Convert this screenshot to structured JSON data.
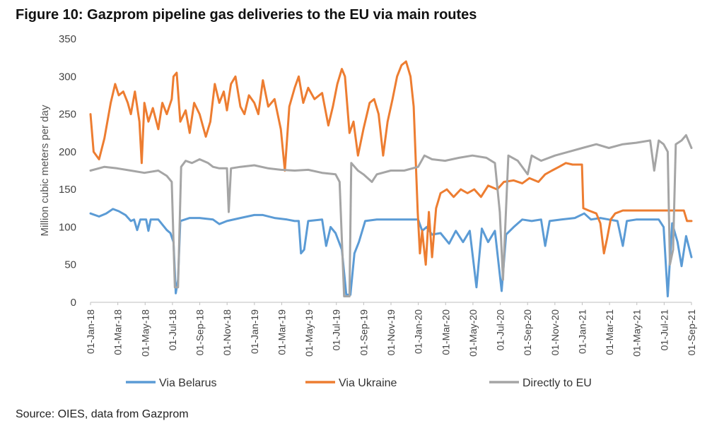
{
  "figure": {
    "title": "Figure 10: Gazprom pipeline gas deliveries to the EU via main routes",
    "source": "Source: OIES, data from Gazprom"
  },
  "chart_data": {
    "type": "line",
    "title": "Figure 10: Gazprom pipeline gas deliveries to the EU via main routes",
    "xlabel": "",
    "ylabel": "Million cubic meters per day",
    "ylim": [
      0,
      350
    ],
    "yticks": [
      0,
      50,
      100,
      150,
      200,
      250,
      300,
      350
    ],
    "xlim": [
      "2018-01-01",
      "2021-09-01"
    ],
    "xtick_labels": [
      "01-Jan-18",
      "01-Mar-18",
      "01-May-18",
      "01-Jul-18",
      "01-Sep-18",
      "01-Nov-18",
      "01-Jan-19",
      "01-Mar-19",
      "01-May-19",
      "01-Jul-19",
      "01-Sep-19",
      "01-Nov-19",
      "01-Jan-20",
      "01-Mar-20",
      "01-May-20",
      "01-Jul-20",
      "01-Sep-20",
      "01-Nov-20",
      "01-Jan-21",
      "01-Mar-21",
      "01-May-21",
      "01-Jul-21",
      "01-Sep-21"
    ],
    "grid": false,
    "legend_position": "bottom",
    "series": [
      {
        "name": "Via Belarus",
        "color": "#5b9bd5",
        "points": [
          [
            "2018-01-01",
            118
          ],
          [
            "2018-01-20",
            114
          ],
          [
            "2018-02-05",
            118
          ],
          [
            "2018-02-20",
            124
          ],
          [
            "2018-03-05",
            121
          ],
          [
            "2018-03-20",
            116
          ],
          [
            "2018-04-01",
            108
          ],
          [
            "2018-04-08",
            110
          ],
          [
            "2018-04-15",
            96
          ],
          [
            "2018-04-22",
            110
          ],
          [
            "2018-05-05",
            110
          ],
          [
            "2018-05-10",
            95
          ],
          [
            "2018-05-15",
            110
          ],
          [
            "2018-06-01",
            110
          ],
          [
            "2018-06-20",
            96
          ],
          [
            "2018-06-28",
            92
          ],
          [
            "2018-07-05",
            80
          ],
          [
            "2018-07-10",
            12
          ],
          [
            "2018-07-15",
            30
          ],
          [
            "2018-07-20",
            108
          ],
          [
            "2018-08-10",
            112
          ],
          [
            "2018-09-01",
            112
          ],
          [
            "2018-10-01",
            110
          ],
          [
            "2018-10-15",
            104
          ],
          [
            "2018-11-01",
            108
          ],
          [
            "2018-12-01",
            112
          ],
          [
            "2019-01-01",
            116
          ],
          [
            "2019-01-20",
            116
          ],
          [
            "2019-02-15",
            112
          ],
          [
            "2019-03-15",
            110
          ],
          [
            "2019-04-01",
            108
          ],
          [
            "2019-04-10",
            108
          ],
          [
            "2019-04-15",
            65
          ],
          [
            "2019-04-22",
            70
          ],
          [
            "2019-05-01",
            108
          ],
          [
            "2019-06-01",
            110
          ],
          [
            "2019-06-10",
            75
          ],
          [
            "2019-06-20",
            100
          ],
          [
            "2019-07-01",
            92
          ],
          [
            "2019-07-15",
            70
          ],
          [
            "2019-07-25",
            10
          ],
          [
            "2019-08-03",
            10
          ],
          [
            "2019-08-12",
            65
          ],
          [
            "2019-08-22",
            80
          ],
          [
            "2019-09-05",
            108
          ],
          [
            "2019-10-01",
            110
          ],
          [
            "2019-11-01",
            110
          ],
          [
            "2019-12-01",
            110
          ],
          [
            "2020-01-01",
            110
          ],
          [
            "2020-01-10",
            95
          ],
          [
            "2020-01-20",
            100
          ],
          [
            "2020-02-01",
            90
          ],
          [
            "2020-02-20",
            92
          ],
          [
            "2020-03-10",
            78
          ],
          [
            "2020-03-25",
            95
          ],
          [
            "2020-04-10",
            80
          ],
          [
            "2020-04-25",
            95
          ],
          [
            "2020-05-10",
            20
          ],
          [
            "2020-05-22",
            98
          ],
          [
            "2020-06-05",
            80
          ],
          [
            "2020-06-20",
            95
          ],
          [
            "2020-07-05",
            15
          ],
          [
            "2020-07-15",
            90
          ],
          [
            "2020-08-01",
            100
          ],
          [
            "2020-08-20",
            110
          ],
          [
            "2020-09-10",
            108
          ],
          [
            "2020-10-01",
            110
          ],
          [
            "2020-10-10",
            75
          ],
          [
            "2020-10-20",
            108
          ],
          [
            "2020-11-15",
            110
          ],
          [
            "2020-12-15",
            112
          ],
          [
            "2021-01-05",
            118
          ],
          [
            "2021-01-20",
            110
          ],
          [
            "2021-02-10",
            112
          ],
          [
            "2021-03-01",
            110
          ],
          [
            "2021-03-20",
            108
          ],
          [
            "2021-04-01",
            75
          ],
          [
            "2021-04-10",
            108
          ],
          [
            "2021-05-01",
            110
          ],
          [
            "2021-05-20",
            110
          ],
          [
            "2021-06-20",
            110
          ],
          [
            "2021-07-01",
            100
          ],
          [
            "2021-07-10",
            8
          ],
          [
            "2021-07-20",
            105
          ],
          [
            "2021-08-01",
            80
          ],
          [
            "2021-08-10",
            48
          ],
          [
            "2021-08-20",
            88
          ],
          [
            "2021-09-01",
            60
          ]
        ]
      },
      {
        "name": "Via Ukraine",
        "color": "#ed7d31",
        "points": [
          [
            "2018-01-01",
            250
          ],
          [
            "2018-01-08",
            200
          ],
          [
            "2018-01-20",
            190
          ],
          [
            "2018-02-01",
            218
          ],
          [
            "2018-02-15",
            265
          ],
          [
            "2018-02-25",
            290
          ],
          [
            "2018-03-05",
            275
          ],
          [
            "2018-03-15",
            280
          ],
          [
            "2018-03-25",
            265
          ],
          [
            "2018-04-01",
            250
          ],
          [
            "2018-04-10",
            280
          ],
          [
            "2018-04-20",
            240
          ],
          [
            "2018-04-25",
            185
          ],
          [
            "2018-05-01",
            265
          ],
          [
            "2018-05-10",
            240
          ],
          [
            "2018-05-20",
            258
          ],
          [
            "2018-06-01",
            230
          ],
          [
            "2018-06-10",
            265
          ],
          [
            "2018-06-20",
            250
          ],
          [
            "2018-07-01",
            270
          ],
          [
            "2018-07-05",
            300
          ],
          [
            "2018-07-12",
            305
          ],
          [
            "2018-07-20",
            240
          ],
          [
            "2018-08-01",
            255
          ],
          [
            "2018-08-10",
            225
          ],
          [
            "2018-08-20",
            265
          ],
          [
            "2018-09-01",
            250
          ],
          [
            "2018-09-15",
            220
          ],
          [
            "2018-09-25",
            240
          ],
          [
            "2018-10-05",
            290
          ],
          [
            "2018-10-15",
            265
          ],
          [
            "2018-10-25",
            280
          ],
          [
            "2018-11-01",
            255
          ],
          [
            "2018-11-10",
            290
          ],
          [
            "2018-11-20",
            300
          ],
          [
            "2018-12-01",
            260
          ],
          [
            "2018-12-10",
            250
          ],
          [
            "2018-12-20",
            275
          ],
          [
            "2019-01-01",
            265
          ],
          [
            "2019-01-10",
            250
          ],
          [
            "2019-01-20",
            295
          ],
          [
            "2019-02-01",
            260
          ],
          [
            "2019-02-15",
            270
          ],
          [
            "2019-03-01",
            230
          ],
          [
            "2019-03-10",
            175
          ],
          [
            "2019-03-20",
            260
          ],
          [
            "2019-04-01",
            285
          ],
          [
            "2019-04-10",
            300
          ],
          [
            "2019-04-20",
            265
          ],
          [
            "2019-05-01",
            285
          ],
          [
            "2019-05-15",
            270
          ],
          [
            "2019-06-01",
            278
          ],
          [
            "2019-06-15",
            235
          ],
          [
            "2019-06-25",
            260
          ],
          [
            "2019-07-05",
            290
          ],
          [
            "2019-07-15",
            310
          ],
          [
            "2019-07-22",
            300
          ],
          [
            "2019-08-01",
            225
          ],
          [
            "2019-08-10",
            240
          ],
          [
            "2019-08-20",
            195
          ],
          [
            "2019-09-01",
            230
          ],
          [
            "2019-09-15",
            265
          ],
          [
            "2019-09-25",
            270
          ],
          [
            "2019-10-05",
            250
          ],
          [
            "2019-10-15",
            195
          ],
          [
            "2019-10-25",
            240
          ],
          [
            "2019-11-05",
            270
          ],
          [
            "2019-11-15",
            300
          ],
          [
            "2019-11-25",
            315
          ],
          [
            "2019-12-05",
            320
          ],
          [
            "2019-12-15",
            300
          ],
          [
            "2019-12-22",
            260
          ],
          [
            "2019-12-31",
            120
          ],
          [
            "2020-01-05",
            65
          ],
          [
            "2020-01-10",
            95
          ],
          [
            "2020-01-18",
            50
          ],
          [
            "2020-01-25",
            120
          ],
          [
            "2020-02-01",
            60
          ],
          [
            "2020-02-10",
            125
          ],
          [
            "2020-02-20",
            145
          ],
          [
            "2020-03-05",
            150
          ],
          [
            "2020-03-20",
            140
          ],
          [
            "2020-04-05",
            150
          ],
          [
            "2020-04-20",
            145
          ],
          [
            "2020-05-05",
            150
          ],
          [
            "2020-05-20",
            140
          ],
          [
            "2020-06-05",
            155
          ],
          [
            "2020-06-25",
            150
          ],
          [
            "2020-07-10",
            160
          ],
          [
            "2020-08-01",
            162
          ],
          [
            "2020-08-20",
            158
          ],
          [
            "2020-09-05",
            165
          ],
          [
            "2020-09-25",
            160
          ],
          [
            "2020-10-10",
            170
          ],
          [
            "2020-10-25",
            175
          ],
          [
            "2020-11-10",
            180
          ],
          [
            "2020-11-25",
            185
          ],
          [
            "2020-12-10",
            183
          ],
          [
            "2020-12-31",
            183
          ],
          [
            "2021-01-03",
            125
          ],
          [
            "2021-01-15",
            122
          ],
          [
            "2021-02-01",
            118
          ],
          [
            "2021-02-10",
            105
          ],
          [
            "2021-02-18",
            65
          ],
          [
            "2021-02-25",
            85
          ],
          [
            "2021-03-05",
            110
          ],
          [
            "2021-03-15",
            118
          ],
          [
            "2021-04-01",
            122
          ],
          [
            "2021-05-01",
            122
          ],
          [
            "2021-06-01",
            122
          ],
          [
            "2021-07-01",
            122
          ],
          [
            "2021-08-01",
            122
          ],
          [
            "2021-08-15",
            122
          ],
          [
            "2021-08-22",
            108
          ],
          [
            "2021-09-01",
            108
          ]
        ]
      },
      {
        "name": "Directly to EU",
        "color": "#a5a5a5",
        "points": [
          [
            "2018-01-01",
            175
          ],
          [
            "2018-02-01",
            180
          ],
          [
            "2018-03-01",
            178
          ],
          [
            "2018-04-01",
            175
          ],
          [
            "2018-05-01",
            172
          ],
          [
            "2018-06-01",
            175
          ],
          [
            "2018-06-20",
            168
          ],
          [
            "2018-07-01",
            160
          ],
          [
            "2018-07-08",
            20
          ],
          [
            "2018-07-15",
            20
          ],
          [
            "2018-07-22",
            180
          ],
          [
            "2018-08-01",
            188
          ],
          [
            "2018-08-15",
            185
          ],
          [
            "2018-09-01",
            190
          ],
          [
            "2018-09-20",
            185
          ],
          [
            "2018-10-01",
            180
          ],
          [
            "2018-10-15",
            178
          ],
          [
            "2018-11-01",
            178
          ],
          [
            "2018-11-05",
            120
          ],
          [
            "2018-11-10",
            178
          ],
          [
            "2018-12-01",
            180
          ],
          [
            "2019-01-01",
            182
          ],
          [
            "2019-02-01",
            178
          ],
          [
            "2019-03-01",
            176
          ],
          [
            "2019-04-01",
            175
          ],
          [
            "2019-05-01",
            176
          ],
          [
            "2019-06-01",
            172
          ],
          [
            "2019-07-01",
            170
          ],
          [
            "2019-07-10",
            160
          ],
          [
            "2019-07-20",
            8
          ],
          [
            "2019-08-01",
            8
          ],
          [
            "2019-08-05",
            185
          ],
          [
            "2019-08-20",
            175
          ],
          [
            "2019-09-01",
            170
          ],
          [
            "2019-09-20",
            160
          ],
          [
            "2019-10-01",
            170
          ],
          [
            "2019-11-01",
            175
          ],
          [
            "2019-12-01",
            175
          ],
          [
            "2020-01-01",
            180
          ],
          [
            "2020-01-15",
            195
          ],
          [
            "2020-02-01",
            190
          ],
          [
            "2020-03-01",
            188
          ],
          [
            "2020-04-01",
            192
          ],
          [
            "2020-05-01",
            195
          ],
          [
            "2020-06-01",
            192
          ],
          [
            "2020-06-20",
            185
          ],
          [
            "2020-07-01",
            120
          ],
          [
            "2020-07-08",
            30
          ],
          [
            "2020-07-20",
            195
          ],
          [
            "2020-08-10",
            188
          ],
          [
            "2020-09-01",
            170
          ],
          [
            "2020-09-10",
            195
          ],
          [
            "2020-10-01",
            188
          ],
          [
            "2020-11-01",
            195
          ],
          [
            "2020-12-01",
            200
          ],
          [
            "2021-01-01",
            205
          ],
          [
            "2021-02-01",
            210
          ],
          [
            "2021-03-01",
            205
          ],
          [
            "2021-04-01",
            210
          ],
          [
            "2021-05-01",
            212
          ],
          [
            "2021-06-01",
            215
          ],
          [
            "2021-06-10",
            175
          ],
          [
            "2021-06-20",
            215
          ],
          [
            "2021-07-01",
            210
          ],
          [
            "2021-07-10",
            200
          ],
          [
            "2021-07-15",
            50
          ],
          [
            "2021-07-22",
            70
          ],
          [
            "2021-07-28",
            210
          ],
          [
            "2021-08-10",
            215
          ],
          [
            "2021-08-20",
            222
          ],
          [
            "2021-09-01",
            205
          ]
        ]
      }
    ]
  }
}
